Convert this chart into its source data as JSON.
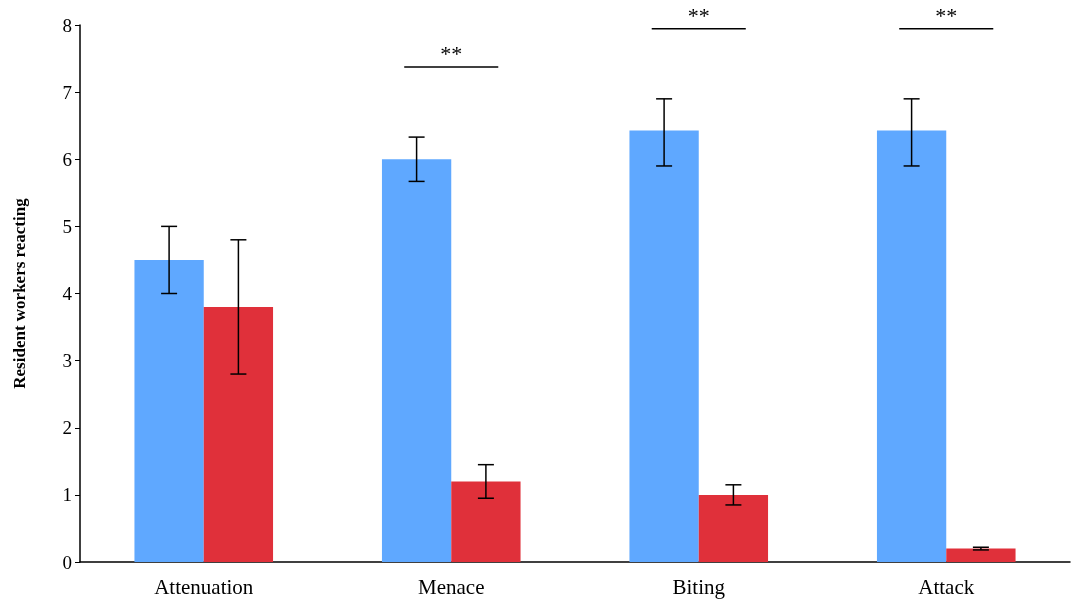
{
  "chart_data": {
    "type": "bar",
    "ylabel": "Resident workers reacting",
    "categories": [
      "Attenuation",
      "Menace",
      "Biting",
      "Attack"
    ],
    "series": [
      {
        "color": "#5fa8ff",
        "values": [
          4.5,
          6.0,
          6.43,
          6.43
        ],
        "errors": [
          [
            4.0,
            5.0
          ],
          [
            5.67,
            6.33
          ],
          [
            5.9,
            6.9
          ],
          [
            5.9,
            6.9
          ]
        ]
      },
      {
        "color": "#e0303a",
        "values": [
          3.8,
          1.2,
          1.0,
          0.2
        ],
        "errors": [
          [
            2.8,
            4.8
          ],
          [
            0.95,
            1.45
          ],
          [
            0.85,
            1.15
          ],
          [
            0.18,
            0.22
          ]
        ]
      }
    ],
    "ylim": [
      0,
      8
    ],
    "yticks": [
      0,
      1,
      2,
      3,
      4,
      5,
      6,
      7,
      8
    ],
    "grid": false,
    "annotations": [
      "**",
      "**",
      "**"
    ]
  }
}
